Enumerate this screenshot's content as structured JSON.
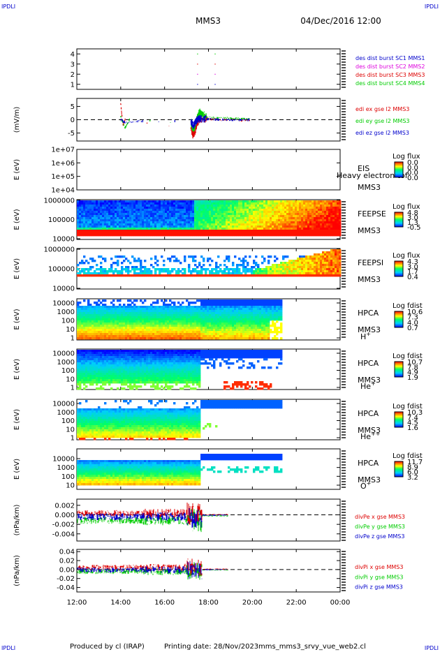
{
  "header": {
    "corner_left_top": "IPDLI",
    "corner_right_top": "IPDLI",
    "corner_left_bottom": "IPDLI",
    "corner_right_bottom": "IPDLI",
    "spacecraft": "MMS3",
    "datetime": "04/Dec/2016 12:00"
  },
  "footer": {
    "produced_by": "Produced by cl (IRAP)",
    "printing_date": "Printing date: 28/Nov/2023",
    "file": "mms_mms3_srvy_vue_web2.cl"
  },
  "x_ticks": [
    "12:00",
    "14:00",
    "16:00",
    "18:00",
    "20:00",
    "22:00",
    "00:00"
  ],
  "x_tick_hours": [
    12,
    14,
    16,
    18,
    20,
    22,
    24
  ],
  "colors": {
    "mms1": "#0000cc",
    "mms2": "#dd00dd",
    "mms3": "#dd0000",
    "mms4": "#00cc00"
  },
  "chart_data": [
    {
      "id": "des",
      "type": "scatter",
      "y_ticks": [
        "4",
        "3",
        "2",
        "1"
      ],
      "ylim": [
        0.5,
        4.5
      ],
      "series": [
        {
          "name": "des dist burst SC1 MMS1",
          "color": "#0000cc",
          "x": [
            17.5,
            18.3
          ],
          "y": [
            1,
            1
          ]
        },
        {
          "name": "des dist burst SC2 MMS2",
          "color": "#dd00dd",
          "x": [
            17.5,
            18.3
          ],
          "y": [
            2,
            2
          ]
        },
        {
          "name": "des dist burst SC3 MMS3",
          "color": "#dd0000",
          "x": [
            17.5,
            18.3
          ],
          "y": [
            3,
            3
          ]
        },
        {
          "name": "des dist burst SC4 MMS4",
          "color": "#00cc00",
          "x": [
            17.5,
            18.3
          ],
          "y": [
            4,
            4
          ]
        }
      ]
    },
    {
      "id": "edi",
      "type": "line",
      "ylabel": "(mV/m)",
      "y_ticks": [
        "5",
        "0",
        "-5"
      ],
      "y_tick_values": [
        5,
        0,
        -5
      ],
      "ylim": [
        -8,
        8
      ],
      "series": [
        {
          "name": "edi ex gse l2 MMS3",
          "color": "#dd0000",
          "x": [
            14.0,
            14.1,
            14.2,
            17.2,
            17.3,
            17.4,
            17.5,
            17.6,
            17.7,
            18.0,
            18.5,
            19.0,
            19.5,
            19.9
          ],
          "y": [
            6,
            -2,
            0,
            -3,
            -6,
            -4,
            -1,
            0,
            0.5,
            0.3,
            0,
            0.1,
            -0.2,
            0
          ]
        },
        {
          "name": "edi ey gse l2 MMS3",
          "color": "#00cc00",
          "x": [
            14.0,
            14.2,
            14.4,
            17.2,
            17.3,
            17.4,
            17.5,
            17.6,
            17.7,
            18.0,
            18.5,
            19.0,
            19.5,
            19.9
          ],
          "y": [
            1,
            -3,
            0,
            -1,
            -4,
            -2,
            1,
            3,
            2,
            0.8,
            0.5,
            0.6,
            0.3,
            0.2
          ]
        },
        {
          "name": "edi ez gse l2 MMS3",
          "color": "#0000cc",
          "x": [
            14.0,
            14.2,
            15.0,
            17.2,
            17.3,
            17.4,
            17.5,
            17.6,
            17.8,
            18.0,
            18.5,
            19.0,
            19.5,
            19.9
          ],
          "y": [
            0,
            -1,
            -0.5,
            -0.5,
            -2,
            -1,
            0,
            0.5,
            0.3,
            0.2,
            0,
            0,
            -0.1,
            0
          ]
        }
      ]
    },
    {
      "id": "eis",
      "type": "heatmap",
      "ylabel": "E (eV)",
      "y_ticks": [
        "1e+07",
        "1e+06",
        "1e+05",
        "1e+04"
      ],
      "instrument": [
        "EIS",
        "Heavy electron tof",
        "MMS3"
      ],
      "colorbar_title": "Log flux",
      "colorbar_ticks": [
        "0.0",
        "0.0",
        "0.0",
        "0.0"
      ]
    },
    {
      "id": "feepse",
      "type": "heatmap",
      "ylabel": "E (eV)",
      "y_ticks": [
        "1000000",
        "100000",
        "10000"
      ],
      "instrument": [
        "FEEPSE",
        "MMS3"
      ],
      "colorbar_title": "Log flux",
      "colorbar_ticks": [
        "4.8",
        "3.0",
        "1.3",
        "-0.5"
      ],
      "colorbar_range": [
        -0.5,
        4.8
      ]
    },
    {
      "id": "feepsi",
      "type": "heatmap",
      "ylabel": "E (eV)",
      "y_ticks": [
        "1000000",
        "100000",
        "10000"
      ],
      "instrument": [
        "FEEPSI",
        "MMS3"
      ],
      "colorbar_title": "Log flux",
      "colorbar_ticks": [
        "4.3",
        "3.0",
        "1.7",
        "0.4"
      ],
      "colorbar_range": [
        0.4,
        4.3
      ]
    },
    {
      "id": "hpca_h",
      "type": "heatmap",
      "ylabel": "E (eV)",
      "y_ticks": [
        "10000",
        "1000",
        "100",
        "10",
        "1"
      ],
      "instrument": [
        "HPCA",
        "MMS3"
      ],
      "species": {
        "base": "H",
        "sup": "+"
      },
      "colorbar_title": "Log fdist",
      "colorbar_ticks": [
        "10.6",
        "7.3",
        "4.0",
        "0.7"
      ],
      "colorbar_range": [
        0.7,
        10.6
      ]
    },
    {
      "id": "hpca_he",
      "type": "heatmap",
      "ylabel": "E (eV)",
      "y_ticks": [
        "10000",
        "1000",
        "100",
        "10",
        "1"
      ],
      "instrument": [
        "HPCA",
        "MMS3"
      ],
      "species": {
        "base": "He",
        "sup": "+"
      },
      "colorbar_title": "Log fdist",
      "colorbar_ticks": [
        "10.7",
        "7.8",
        "4.9",
        "1.9"
      ],
      "colorbar_range": [
        1.9,
        10.7
      ]
    },
    {
      "id": "hpca_hepp",
      "type": "heatmap",
      "ylabel": "E (eV)",
      "y_ticks": [
        "10000",
        "1000",
        "100",
        "10",
        "1"
      ],
      "instrument": [
        "HPCA",
        "MMS3"
      ],
      "species": {
        "base": "He",
        "sup": "++"
      },
      "colorbar_title": "Log fdist",
      "colorbar_ticks": [
        "10.3",
        "7.4",
        "4.5",
        "1.6"
      ],
      "colorbar_range": [
        1.6,
        10.3
      ]
    },
    {
      "id": "hpca_o",
      "type": "heatmap",
      "ylabel": "E (eV)",
      "y_ticks": [
        "10000",
        "1000",
        "100",
        "10"
      ],
      "instrument": [
        "HPCA",
        "MMS3"
      ],
      "species": {
        "base": "O",
        "sup": "+"
      },
      "colorbar_title": "Log fdist",
      "colorbar_ticks": [
        "11.7",
        "8.9",
        "6.0",
        "3.2"
      ],
      "colorbar_range": [
        3.2,
        11.7
      ]
    },
    {
      "id": "divpe",
      "type": "line",
      "ylabel": "(nPa/km)",
      "y_ticks": [
        "0.002",
        "0.000",
        "-0.002",
        "-0.004"
      ],
      "y_tick_values": [
        0.002,
        0.0,
        -0.002,
        -0.004
      ],
      "ylim": [
        -0.0055,
        0.0033
      ],
      "series": [
        {
          "name": "divPe x gse MMS3",
          "color": "#dd0000"
        },
        {
          "name": "divPe y gse MMS3",
          "color": "#00cc00"
        },
        {
          "name": "divPe z gse MMS3",
          "color": "#0000cc"
        }
      ]
    },
    {
      "id": "divpi",
      "type": "line",
      "ylabel": "(nPa/km)",
      "y_ticks": [
        "0.04",
        "0.02",
        "0.00",
        "-0.02",
        "-0.04"
      ],
      "y_tick_values": [
        0.04,
        0.02,
        0.0,
        -0.02,
        -0.04
      ],
      "ylim": [
        -0.05,
        0.045
      ],
      "series": [
        {
          "name": "divPi x gse MMS3",
          "color": "#dd0000"
        },
        {
          "name": "divPi y gse MMS3",
          "color": "#00cc00"
        },
        {
          "name": "divPi z gse MMS3",
          "color": "#0000cc"
        }
      ]
    }
  ]
}
